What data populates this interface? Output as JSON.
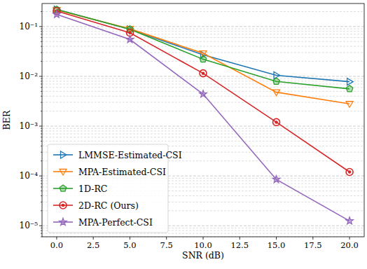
{
  "chart_data": {
    "type": "line",
    "x_label": "SNR (dB)",
    "y_label": "BER",
    "x": [
      0,
      5,
      10,
      15,
      20
    ],
    "series": [
      {
        "name": "LMMSE-Estimated-CSI",
        "color": "#1f77b4",
        "marker": "triangle-right",
        "values": [
          0.22,
          0.088,
          0.027,
          0.0105,
          0.0078
        ]
      },
      {
        "name": "MPA-Estimated-CSI",
        "color": "#ff7f0e",
        "marker": "triangle-down",
        "values": [
          0.215,
          0.09,
          0.029,
          0.0048,
          0.0028
        ]
      },
      {
        "name": "1D-RC",
        "color": "#2ca02c",
        "marker": "pentagon",
        "values": [
          0.22,
          0.088,
          0.022,
          0.0079,
          0.0056
        ]
      },
      {
        "name": "2D-RC (Ours)",
        "color": "#d62728",
        "marker": "circle",
        "values": [
          0.205,
          0.075,
          0.0115,
          0.0012,
          0.00012
        ]
      },
      {
        "name": "MPA-Perfect-CSI",
        "color": "#9467bd",
        "marker": "star",
        "values": [
          0.175,
          0.055,
          0.0044,
          8.5e-05,
          1.25e-05
        ]
      }
    ],
    "xlim": [
      -1,
      21
    ],
    "xticks": [
      {
        "value": 0,
        "label": "0.0"
      },
      2.5,
      {
        "value": 5,
        "label": "5.0"
      },
      7.5,
      {
        "value": 10,
        "label": "10.0"
      },
      12.5,
      {
        "value": 15,
        "label": "15.0"
      },
      17.5,
      {
        "value": 20,
        "label": "20.0"
      }
    ],
    "ylim": [
      6e-06,
      0.29
    ],
    "yticks": [
      {
        "value": 1e-05,
        "label": "10⁻⁵"
      },
      {
        "value": 0.0001,
        "label": "10⁻⁴"
      },
      {
        "value": 0.001,
        "label": "10⁻³"
      },
      {
        "value": 0.01,
        "label": "10⁻²"
      },
      {
        "value": 0.1,
        "label": "10⁻¹"
      }
    ],
    "log": "y",
    "grid": true,
    "legend": "lower left"
  }
}
